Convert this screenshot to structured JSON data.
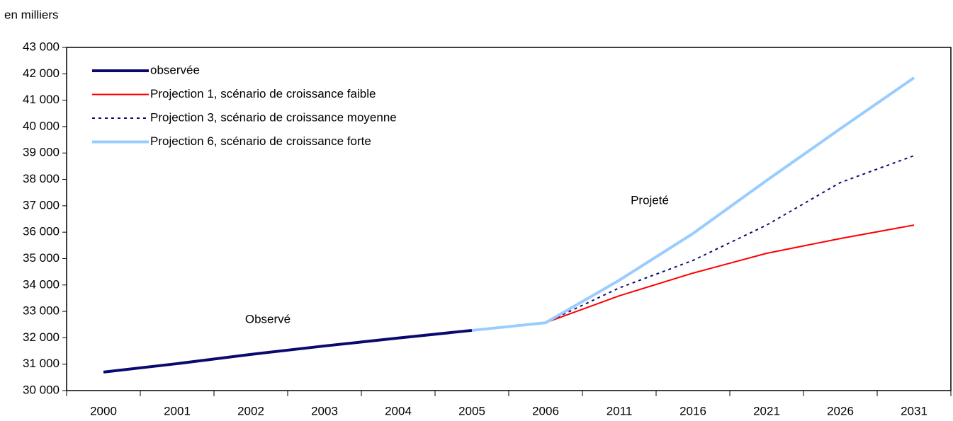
{
  "chart_data": {
    "type": "line",
    "unit_label": "en milliers",
    "categories": [
      "2000",
      "2001",
      "2002",
      "2003",
      "2004",
      "2005",
      "2006",
      "2011",
      "2016",
      "2021",
      "2026",
      "2031"
    ],
    "ylim": [
      30000,
      43000
    ],
    "yticks": [
      {
        "value": 30000,
        "label": "30 000"
      },
      {
        "value": 31000,
        "label": "31 000"
      },
      {
        "value": 32000,
        "label": "32 000"
      },
      {
        "value": 33000,
        "label": "33 000"
      },
      {
        "value": 34000,
        "label": "34 000"
      },
      {
        "value": 35000,
        "label": "35 000"
      },
      {
        "value": 36000,
        "label": "36 000"
      },
      {
        "value": 37000,
        "label": "37 000"
      },
      {
        "value": 38000,
        "label": "38 000"
      },
      {
        "value": 39000,
        "label": "39 000"
      },
      {
        "value": 40000,
        "label": "40 000"
      },
      {
        "value": 41000,
        "label": "41 000"
      },
      {
        "value": 42000,
        "label": "42 000"
      },
      {
        "value": 43000,
        "label": "43 000"
      }
    ],
    "grid": false,
    "legend": "upper left",
    "annotations": [
      "Observé",
      "Projeté"
    ],
    "series": [
      {
        "name": "observée",
        "color": "#0a0a6e",
        "width": 4,
        "dash": "none",
        "values": [
          30700,
          31020,
          31370,
          31690,
          31990,
          32280,
          null,
          null,
          null,
          null,
          null,
          null
        ]
      },
      {
        "name": "Projection 1, scénario de croissance faible",
        "color": "#ff0000",
        "width": 2,
        "dash": "none",
        "values": [
          null,
          null,
          null,
          null,
          null,
          null,
          32570,
          33590,
          34450,
          35200,
          35760,
          36270
        ]
      },
      {
        "name": "Projection 3, scénario de croissance moyenne",
        "color": "#0a0a6e",
        "width": 2,
        "dash": "4 5",
        "values": [
          null,
          null,
          null,
          null,
          null,
          null,
          32570,
          33890,
          34930,
          36270,
          37880,
          38900
        ]
      },
      {
        "name": "Projection 6, scénario de croissance forte",
        "color": "#99ccff",
        "width": 4,
        "dash": "none",
        "values": [
          null,
          null,
          null,
          null,
          null,
          32280,
          32570,
          34180,
          35950,
          37960,
          39920,
          41850
        ]
      }
    ]
  }
}
